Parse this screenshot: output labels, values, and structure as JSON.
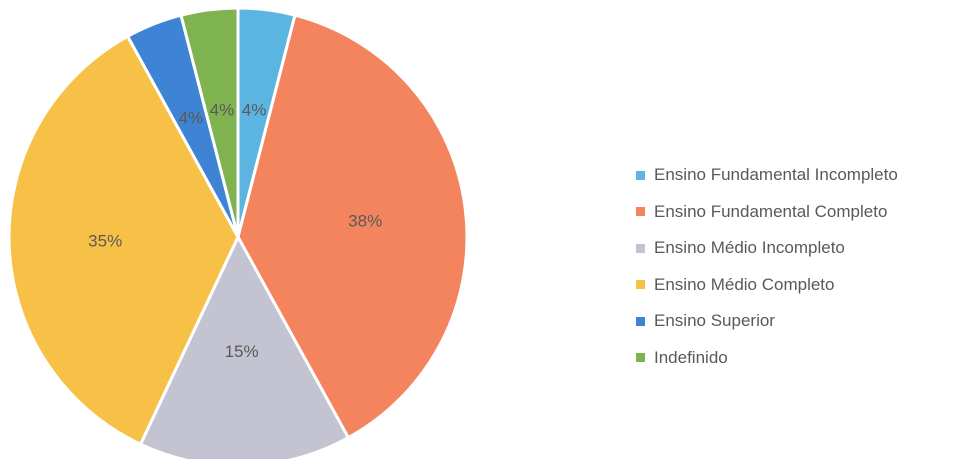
{
  "chart_data": {
    "type": "pie",
    "title": "",
    "legend_position": "right",
    "slices": [
      {
        "name": "Ensino Fundamental Incompleto",
        "value": 4,
        "label": "4%",
        "color": "#5BB5E0"
      },
      {
        "name": "Ensino Fundamental Completo",
        "value": 38,
        "label": "38%",
        "color": "#F4845E"
      },
      {
        "name": "Ensino Médio Incompleto",
        "value": 15,
        "label": "15%",
        "color": "#C3C3D2"
      },
      {
        "name": "Ensino Médio Completo",
        "value": 35,
        "label": "35%",
        "color": "#F7C148"
      },
      {
        "name": "Ensino Superior",
        "value": 4,
        "label": "4%",
        "color": "#3F84D4"
      },
      {
        "name": "Indefinido",
        "value": 4,
        "label": "4%",
        "color": "#7FB350"
      }
    ]
  }
}
